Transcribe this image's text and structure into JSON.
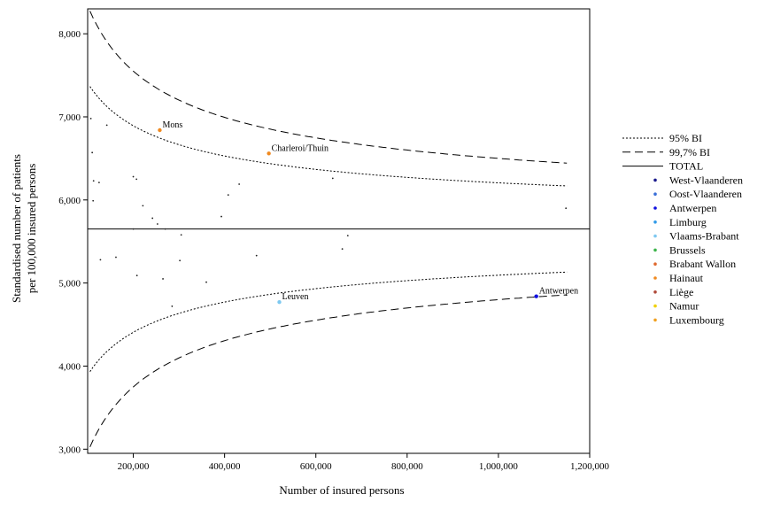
{
  "chart_data": {
    "type": "scatter",
    "title": "",
    "xlabel": "Number of insured persons",
    "ylabel_line1": "Standardised number of patients",
    "ylabel_line2": "per 100,000 insured persons",
    "xlim": [
      100000,
      1200000
    ],
    "ylim": [
      2950,
      8300
    ],
    "x_ticks": [
      200000,
      400000,
      600000,
      800000,
      1000000,
      1200000
    ],
    "x_tick_labels": [
      "200,000",
      "400,000",
      "600,000",
      "800,000",
      "1,000,000",
      "1,200,000"
    ],
    "y_ticks": [
      3000,
      4000,
      5000,
      6000,
      7000,
      8000
    ],
    "y_tick_labels": [
      "3,000",
      "4,000",
      "5,000",
      "6,000",
      "7,000",
      "8,000"
    ],
    "total": 5650,
    "funnel": {
      "x_range": [
        105000,
        1150000
      ],
      "z95": 1.96,
      "z997": 3.0,
      "k95": 1950000,
      "k997": 1330000
    },
    "legend": {
      "position": "right",
      "lines": [
        {
          "label": "95% BI",
          "style": "dotted"
        },
        {
          "label": "99,7% BI",
          "style": "dashed"
        },
        {
          "label": "TOTAL",
          "style": "solid"
        }
      ],
      "regions": [
        {
          "label": "West-Vlaanderen",
          "color": "#1a1a8c"
        },
        {
          "label": "Oost-Vlaanderen",
          "color": "#3a6fd8"
        },
        {
          "label": "Antwerpen",
          "color": "#1010e0"
        },
        {
          "label": "Limburg",
          "color": "#2f9ae8"
        },
        {
          "label": "Vlaams-Brabant",
          "color": "#7ec8f0"
        },
        {
          "label": "Brussels",
          "color": "#3cb44b"
        },
        {
          "label": "Brabant Wallon",
          "color": "#e06a30"
        },
        {
          "label": "Hainaut",
          "color": "#f08a20"
        },
        {
          "label": "Liège",
          "color": "#b04a3a"
        },
        {
          "label": "Namur",
          "color": "#f0d000"
        },
        {
          "label": "Luxembourg",
          "color": "#f0a020"
        }
      ]
    },
    "labeled_points": [
      {
        "x": 258000,
        "y": 6840,
        "label": "Mons",
        "color": "#f08a20"
      },
      {
        "x": 497000,
        "y": 6560,
        "label": "Charleroi/Thuin",
        "color": "#f08a20"
      },
      {
        "x": 520000,
        "y": 4770,
        "label": "Leuven",
        "color": "#7ec8f0"
      },
      {
        "x": 1083000,
        "y": 4840,
        "label": "Antwerpen",
        "color": "#1010e0"
      }
    ],
    "minor_points": [
      {
        "x": 107000,
        "y": 6980
      },
      {
        "x": 110000,
        "y": 6570
      },
      {
        "x": 113000,
        "y": 6230
      },
      {
        "x": 112000,
        "y": 5990
      },
      {
        "x": 125000,
        "y": 6210
      },
      {
        "x": 142000,
        "y": 6900
      },
      {
        "x": 128000,
        "y": 5280
      },
      {
        "x": 162000,
        "y": 5310
      },
      {
        "x": 200000,
        "y": 6280
      },
      {
        "x": 207000,
        "y": 6250
      },
      {
        "x": 221000,
        "y": 5930
      },
      {
        "x": 242000,
        "y": 5780
      },
      {
        "x": 253000,
        "y": 5710
      },
      {
        "x": 200000,
        "y": 5650
      },
      {
        "x": 208000,
        "y": 5090
      },
      {
        "x": 265000,
        "y": 5050
      },
      {
        "x": 270000,
        "y": 5650
      },
      {
        "x": 285000,
        "y": 4720
      },
      {
        "x": 302000,
        "y": 5270
      },
      {
        "x": 305000,
        "y": 5580
      },
      {
        "x": 360000,
        "y": 5010
      },
      {
        "x": 393000,
        "y": 5800
      },
      {
        "x": 408000,
        "y": 6060
      },
      {
        "x": 432000,
        "y": 6190
      },
      {
        "x": 470000,
        "y": 5330
      },
      {
        "x": 637000,
        "y": 6260
      },
      {
        "x": 658000,
        "y": 5410
      },
      {
        "x": 670000,
        "y": 5570
      },
      {
        "x": 1148000,
        "y": 5900
      }
    ]
  }
}
